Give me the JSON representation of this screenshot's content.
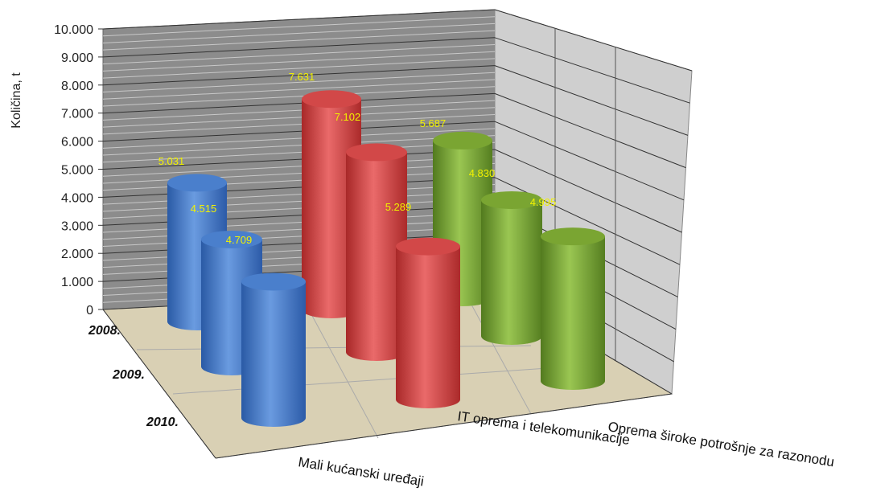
{
  "chart_data": {
    "type": "bar",
    "style": "3d-cylinder",
    "ylabel": "Količina, t",
    "ylim": [
      0,
      10000
    ],
    "yticks": [
      "0",
      "1.000",
      "2.000",
      "3.000",
      "4.000",
      "5.000",
      "6.000",
      "7.000",
      "8.000",
      "9.000",
      "10.000"
    ],
    "categories": [
      "Mali kućanski uređaji",
      "IT oprema i telekomunikacije",
      "Oprema široke potrošnje za razonodu"
    ],
    "series": [
      {
        "name": "2008.",
        "values": [
          5031,
          7631,
          5687
        ],
        "labels": [
          "5.031",
          "7.631",
          "5.687"
        ]
      },
      {
        "name": "2009.",
        "values": [
          4515,
          7102,
          4830
        ],
        "labels": [
          "4.515",
          "7.102",
          "4.830"
        ]
      },
      {
        "name": "2010.",
        "values": [
          4709,
          5289,
          4995
        ],
        "labels": [
          "4.709",
          "5.289",
          "4.995"
        ]
      }
    ],
    "category_colors": [
      "#4a7fcc",
      "#d24848",
      "#7aa532"
    ],
    "grid": true
  }
}
